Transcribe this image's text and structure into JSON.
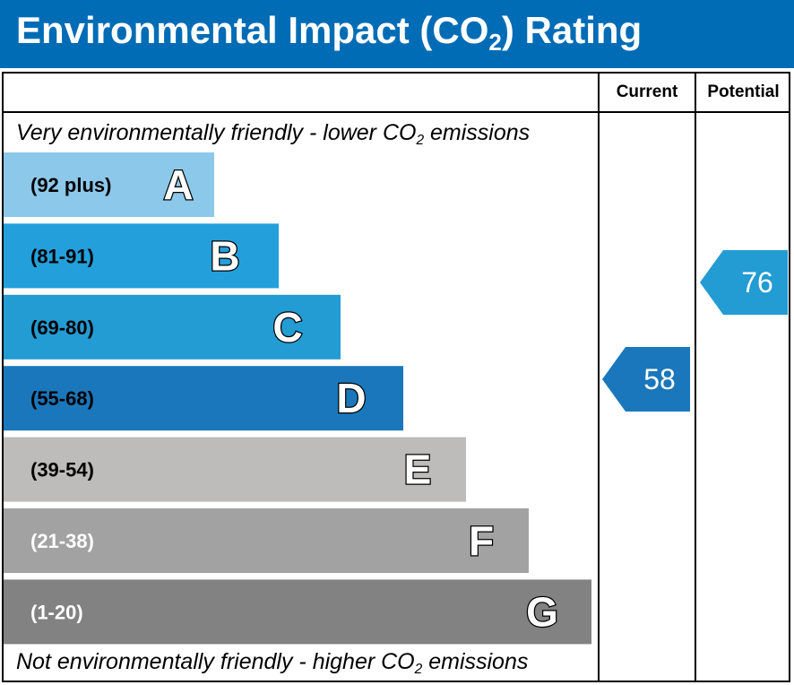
{
  "header": {
    "title_before": "Environmental Impact (CO",
    "title_sub": "2",
    "title_after": ") Rating",
    "background": "#006cb5"
  },
  "columns": {
    "current": "Current",
    "potential": "Potential"
  },
  "captions": {
    "top_before": "Very environmentally friendly - lower CO",
    "top_sub": "2",
    "top_after": " emissions",
    "bottom_before": "Not environmentally friendly - higher CO",
    "bottom_sub": "2",
    "bottom_after": " emissions"
  },
  "chart_data": {
    "type": "bar",
    "categories": [
      "A",
      "B",
      "C",
      "D",
      "E",
      "F",
      "G"
    ],
    "ranges": [
      "(92 plus)",
      "(81-91)",
      "(69-80)",
      "(55-68)",
      "(39-54)",
      "(21-38)",
      "(1-20)"
    ],
    "colors": [
      "#8cc8ea",
      "#23a0dc",
      "#239bd3",
      "#1a77bb",
      "#bdbcbb",
      "#a2a2a2",
      "#828282"
    ],
    "range_text_colors": [
      "#000000",
      "#000000",
      "#000000",
      "#000000",
      "#000000",
      "#ffffff",
      "#ffffff"
    ],
    "current": {
      "value": 58,
      "band": "D",
      "color": "#1a77bb"
    },
    "potential": {
      "value": 76,
      "band": "C",
      "color": "#239bd3"
    }
  }
}
